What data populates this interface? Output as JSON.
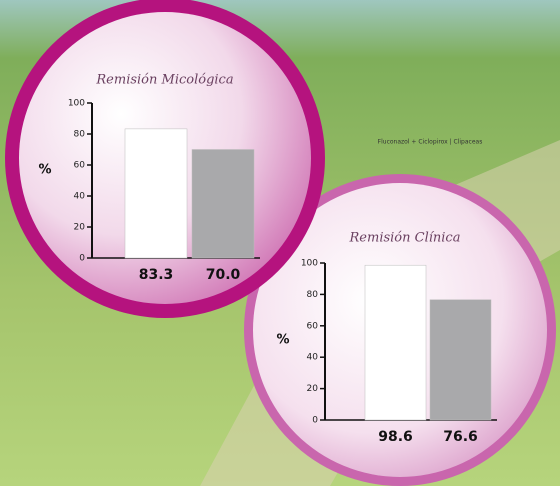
{
  "caption": "Fluconazol + Ciclopirox | Clipaceas",
  "chart_data": [
    {
      "type": "bar",
      "title": "Remisión Micológica",
      "y_label": "%",
      "values": [
        83.3,
        70
      ],
      "value_labels": [
        "83.3",
        "70.0"
      ],
      "colors": [
        "#ffffff",
        "#a9a9ab"
      ],
      "ylim": [
        0,
        100
      ],
      "yticks": [
        0,
        20,
        40,
        60,
        80,
        100
      ]
    },
    {
      "type": "bar",
      "title": "Remisión Clínica",
      "y_label": "%",
      "values": [
        98.6,
        76.6
      ],
      "value_labels": [
        "98.6",
        "76.6"
      ],
      "colors": [
        "#ffffff",
        "#a9a9ab"
      ],
      "ylim": [
        0,
        100
      ],
      "yticks": [
        0,
        20,
        40,
        60,
        80,
        100
      ]
    }
  ]
}
